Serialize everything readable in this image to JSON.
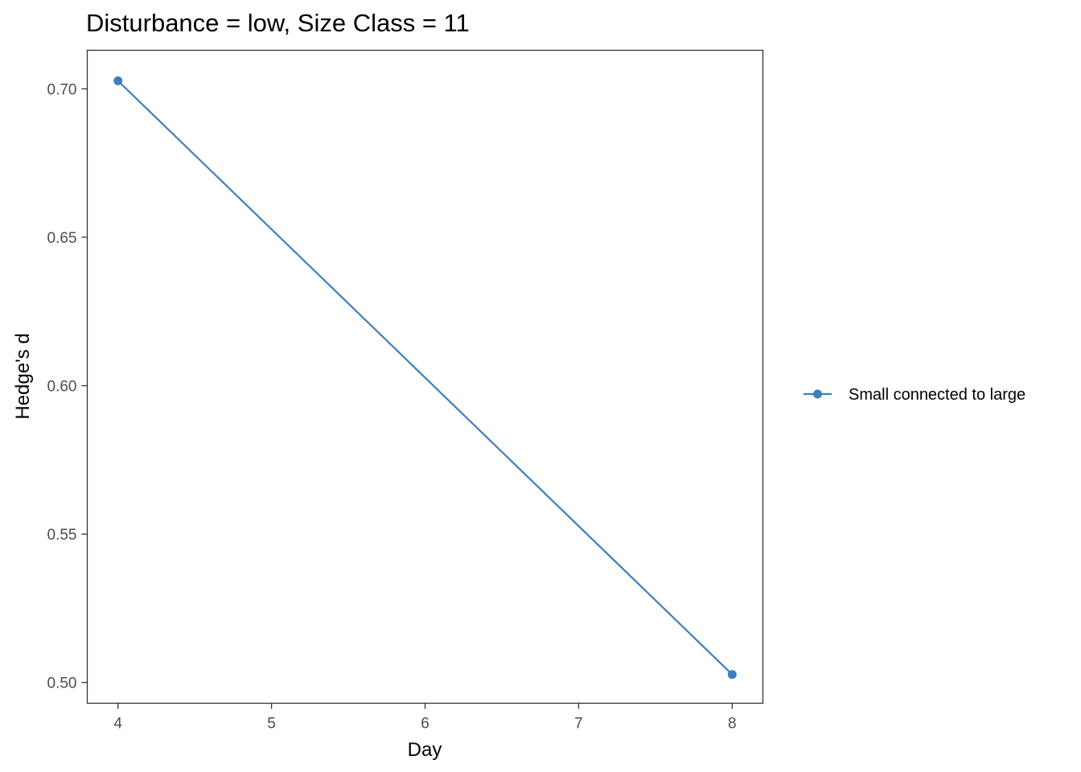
{
  "chart_data": {
    "type": "line",
    "title": "Disturbance = low, Size Class = 11",
    "xlabel": "Day",
    "ylabel": "Hedge's d",
    "xlim": [
      3.8,
      8.2
    ],
    "ylim": [
      0.493,
      0.713
    ],
    "xticks": [
      4,
      5,
      6,
      7,
      8
    ],
    "xtick_labels": [
      "4",
      "5",
      "6",
      "7",
      "8"
    ],
    "yticks": [
      0.5,
      0.55,
      0.6,
      0.65,
      0.7
    ],
    "ytick_labels": [
      "0.50",
      "0.55",
      "0.60",
      "0.65",
      "0.70"
    ],
    "grid": false,
    "legend_position": "right",
    "series": [
      {
        "name": "Small connected to large",
        "color": "#3d7fbf",
        "x": [
          4,
          8
        ],
        "y": [
          0.7027,
          0.5027
        ]
      }
    ]
  }
}
